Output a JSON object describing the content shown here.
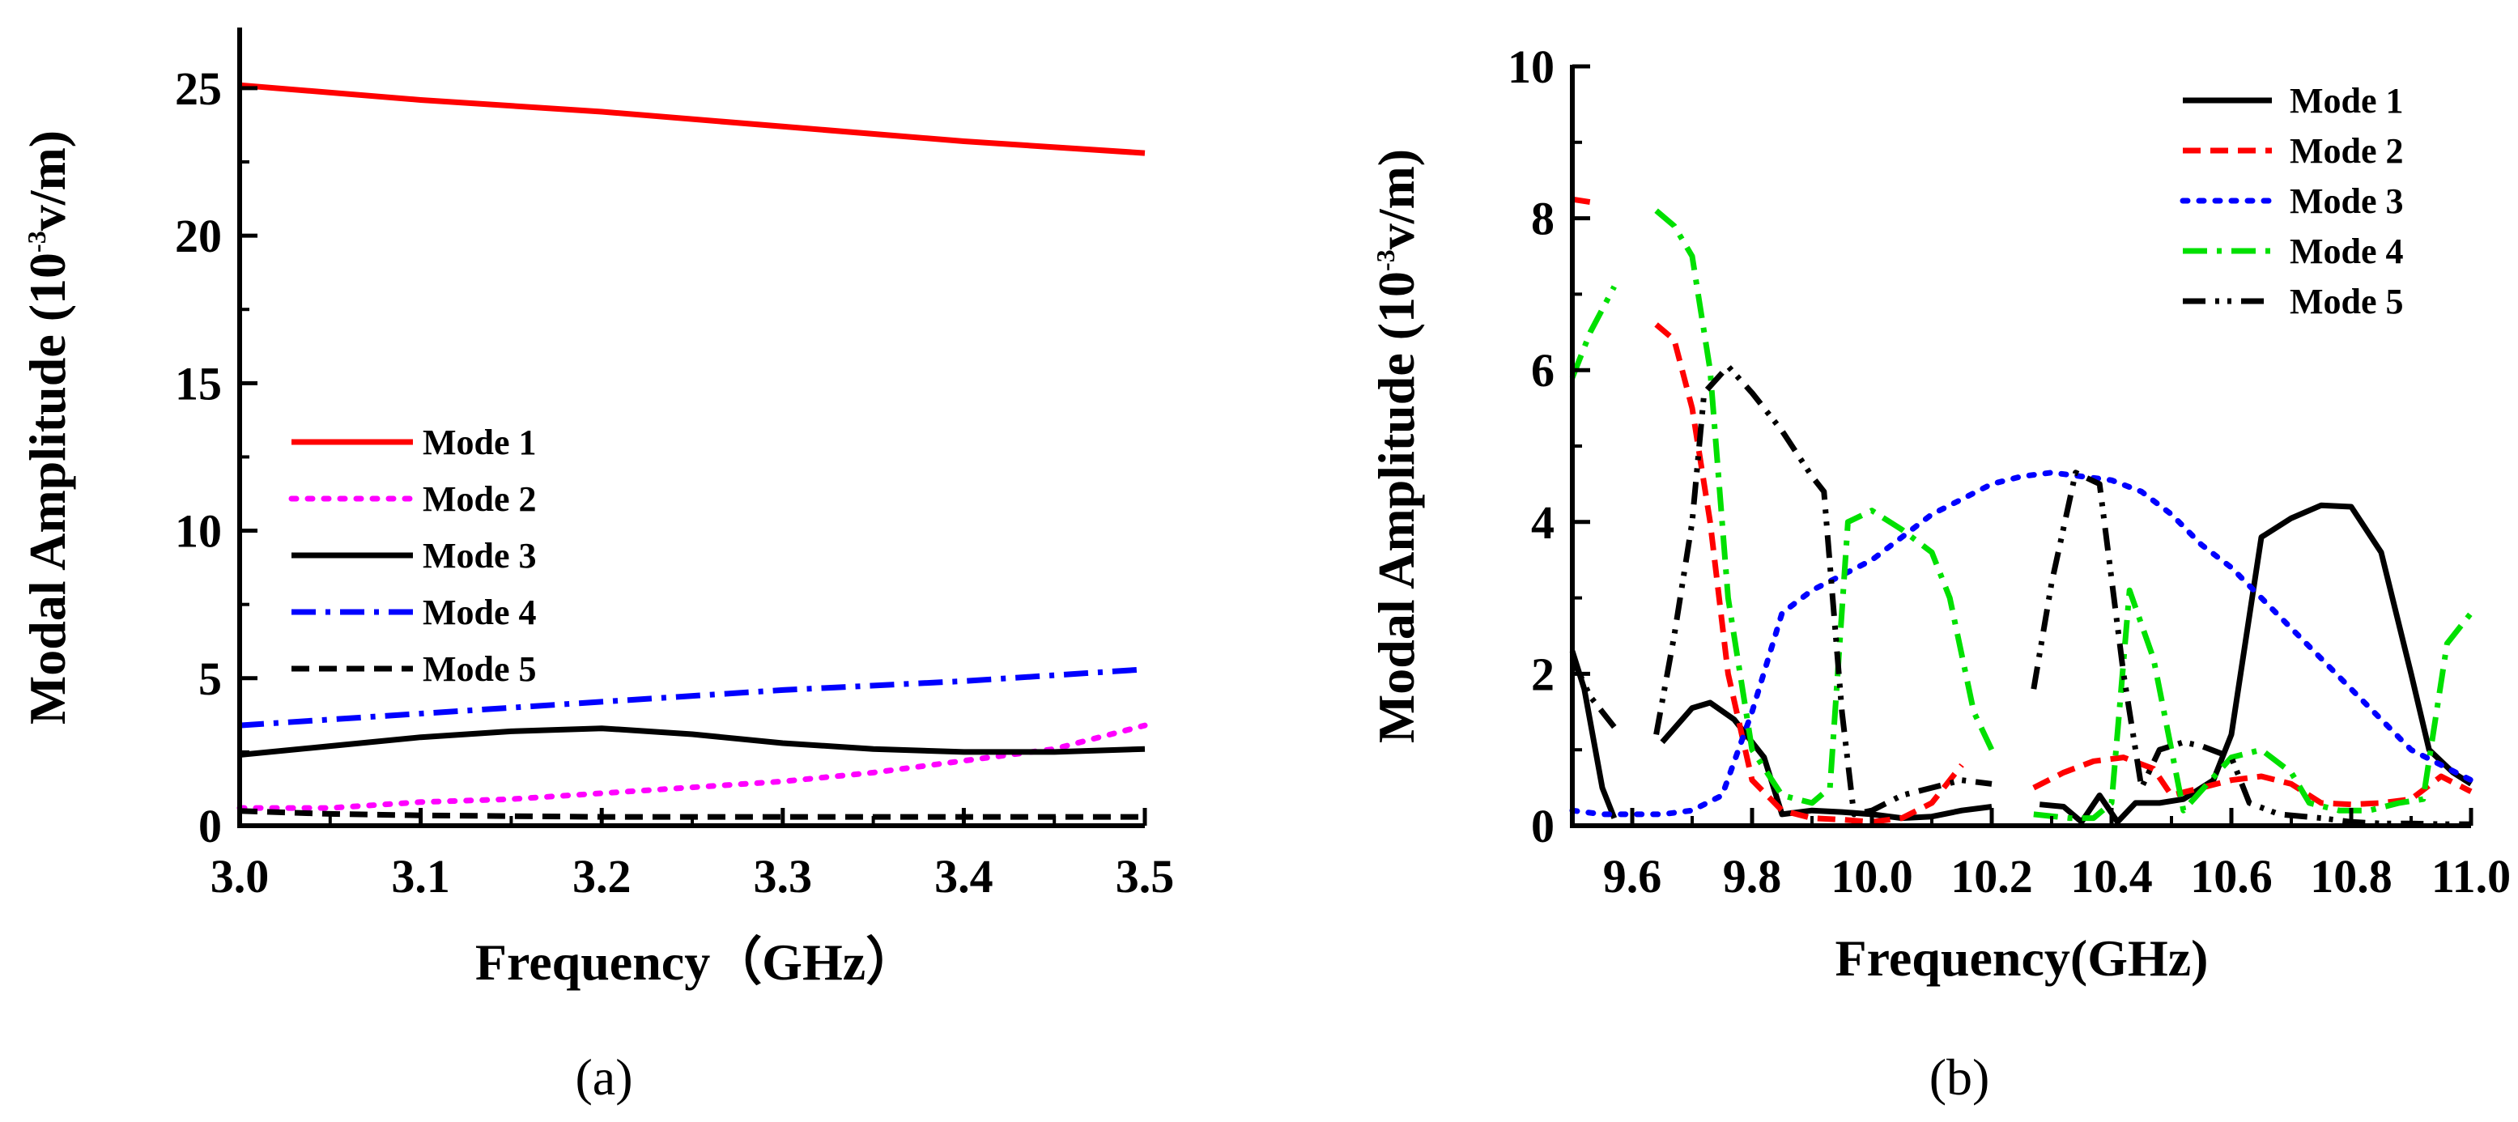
{
  "chart_data": [
    {
      "type": "line",
      "panel_label": "(a)",
      "xlabel": "Frequency（GHz）",
      "ylabel": "Modal Amplitude (10",
      "ylabel_exp": "-3",
      "ylabel_unit": "v/m)",
      "xlim": [
        3.0,
        3.5
      ],
      "ylim": [
        0,
        27
      ],
      "xticks": [
        "3.0",
        "3.1",
        "3.2",
        "3.3",
        "3.4",
        "3.5"
      ],
      "xtick_values": [
        3.0,
        3.1,
        3.2,
        3.3,
        3.4,
        3.5
      ],
      "yticks": [
        "0",
        "5",
        "10",
        "15",
        "20",
        "25"
      ],
      "ytick_values": [
        0,
        5,
        10,
        15,
        20,
        25
      ],
      "grid": false,
      "legend_position": "center-left",
      "series": [
        {
          "name": "Mode 1",
          "color": "#ff0000",
          "dash": "solid",
          "x": [
            3.0,
            3.1,
            3.2,
            3.3,
            3.4,
            3.5
          ],
          "y": [
            25.1,
            24.6,
            24.2,
            23.7,
            23.2,
            22.8
          ]
        },
        {
          "name": "Mode 2",
          "color": "#ff00ff",
          "dash": "dot",
          "x": [
            3.0,
            3.05,
            3.1,
            3.15,
            3.2,
            3.25,
            3.3,
            3.35,
            3.4,
            3.45,
            3.5
          ],
          "y": [
            0.6,
            0.6,
            0.8,
            0.9,
            1.1,
            1.3,
            1.5,
            1.8,
            2.2,
            2.6,
            3.4
          ]
        },
        {
          "name": "Mode 3",
          "color": "#000000",
          "dash": "solid",
          "x": [
            3.0,
            3.05,
            3.1,
            3.15,
            3.2,
            3.25,
            3.3,
            3.35,
            3.4,
            3.45,
            3.5
          ],
          "y": [
            2.4,
            2.7,
            3.0,
            3.2,
            3.3,
            3.1,
            2.8,
            2.6,
            2.5,
            2.5,
            2.6
          ]
        },
        {
          "name": "Mode 4",
          "color": "#0000ff",
          "dash": "dashdot",
          "x": [
            3.0,
            3.1,
            3.2,
            3.3,
            3.4,
            3.5
          ],
          "y": [
            3.4,
            3.8,
            4.2,
            4.6,
            4.9,
            5.3
          ]
        },
        {
          "name": "Mode 5",
          "color": "#000000",
          "dash": "dash",
          "x": [
            3.0,
            3.05,
            3.1,
            3.2,
            3.3,
            3.4,
            3.5
          ],
          "y": [
            0.5,
            0.4,
            0.35,
            0.3,
            0.3,
            0.3,
            0.3
          ]
        }
      ]
    },
    {
      "type": "line",
      "panel_label": "(b)",
      "xlabel": "Frequency(GHz)",
      "ylabel": "Modal Amplitude (10",
      "ylabel_exp": "-3",
      "ylabel_unit": "v/m)",
      "xlim": [
        9.5,
        11.0
      ],
      "ylim": [
        0,
        10
      ],
      "xticks": [
        "9.6",
        "9.8",
        "10.0",
        "10.2",
        "10.4",
        "10.6",
        "10.8",
        "11.0"
      ],
      "xtick_values": [
        9.6,
        9.8,
        10.0,
        10.2,
        10.4,
        10.6,
        10.8,
        11.0
      ],
      "yticks": [
        "0",
        "2",
        "4",
        "6",
        "8",
        "10"
      ],
      "ytick_values": [
        0,
        2,
        4,
        6,
        8,
        10
      ],
      "grid": false,
      "legend_position": "top-right",
      "series": [
        {
          "name": "Mode 1",
          "color": "#000000",
          "dash": "solid",
          "x": [
            9.5,
            9.52,
            9.55,
            9.57,
            null,
            9.65,
            9.7,
            9.73,
            9.77,
            9.82,
            9.85,
            9.9,
            9.95,
            10.0,
            10.05,
            10.1,
            10.15,
            10.2,
            null,
            10.28,
            10.32,
            10.35,
            10.38,
            10.41,
            10.44,
            10.48,
            10.52,
            10.57,
            10.6,
            10.65,
            10.7,
            10.75,
            10.8,
            10.85,
            10.9,
            10.93,
            10.97,
            11.0
          ],
          "y": [
            2.3,
            1.8,
            0.5,
            0.1,
            null,
            1.1,
            1.55,
            1.62,
            1.4,
            0.9,
            0.15,
            0.2,
            0.18,
            0.15,
            0.1,
            0.12,
            0.2,
            0.25,
            null,
            0.28,
            0.25,
            0.05,
            0.4,
            0.05,
            0.3,
            0.3,
            0.35,
            0.6,
            1.2,
            3.8,
            4.05,
            4.22,
            4.2,
            3.6,
            2.0,
            1.0,
            0.7,
            0.55
          ]
        },
        {
          "name": "Mode 2",
          "color": "#ff0000",
          "dash": "dash",
          "x": [
            9.5,
            9.54,
            null,
            9.64,
            9.67,
            9.7,
            9.73,
            9.76,
            9.8,
            9.85,
            9.9,
            9.95,
            10.0,
            10.05,
            10.1,
            10.15,
            null,
            10.27,
            10.32,
            10.37,
            10.42,
            10.47,
            10.5,
            10.55,
            10.6,
            10.65,
            10.7,
            10.75,
            10.8,
            10.85,
            10.9,
            10.95,
            11.0
          ],
          "y": [
            8.25,
            8.2,
            null,
            6.6,
            6.4,
            5.5,
            4.0,
            2.0,
            0.6,
            0.2,
            0.1,
            0.08,
            0.05,
            0.1,
            0.3,
            0.8,
            null,
            0.5,
            0.7,
            0.85,
            0.9,
            0.75,
            0.4,
            0.5,
            0.6,
            0.65,
            0.55,
            0.3,
            0.28,
            0.3,
            0.35,
            0.65,
            0.45
          ]
        },
        {
          "name": "Mode 3",
          "color": "#0000ff",
          "dash": "dot",
          "x": [
            9.5,
            9.55,
            9.6,
            9.65,
            9.7,
            9.75,
            9.8,
            9.85,
            9.9,
            9.95,
            10.0,
            10.05,
            10.1,
            10.15,
            10.2,
            10.25,
            10.3,
            10.35,
            10.4,
            10.45,
            10.5,
            10.55,
            10.6,
            10.65,
            10.7,
            10.75,
            10.8,
            10.85,
            10.9,
            10.95,
            11.0
          ],
          "y": [
            0.2,
            0.15,
            0.15,
            0.15,
            0.2,
            0.4,
            1.5,
            2.8,
            3.1,
            3.3,
            3.5,
            3.8,
            4.1,
            4.3,
            4.5,
            4.6,
            4.65,
            4.6,
            4.55,
            4.4,
            4.1,
            3.7,
            3.4,
            3.0,
            2.6,
            2.2,
            1.8,
            1.4,
            1.0,
            0.8,
            0.6
          ]
        },
        {
          "name": "Mode 4",
          "color": "#00e000",
          "dash": "dashdot",
          "x": [
            9.5,
            9.53,
            9.57,
            null,
            9.64,
            9.67,
            9.7,
            9.73,
            9.76,
            9.8,
            9.85,
            9.9,
            9.93,
            9.96,
            10.0,
            10.05,
            10.1,
            10.13,
            10.17,
            10.2,
            null,
            10.27,
            10.33,
            10.37,
            10.4,
            10.43,
            10.47,
            10.52,
            10.6,
            10.65,
            10.7,
            10.73,
            10.78,
            10.83,
            10.88,
            10.92,
            10.96,
            11.0
          ],
          "y": [
            5.9,
            6.5,
            7.1,
            null,
            8.1,
            7.9,
            7.5,
            6.0,
            3.0,
            1.0,
            0.4,
            0.3,
            0.5,
            4.0,
            4.15,
            3.9,
            3.6,
            3.0,
            1.5,
            1.0,
            null,
            0.15,
            0.1,
            0.1,
            0.3,
            3.1,
            2.2,
            0.2,
            0.9,
            1.0,
            0.7,
            0.3,
            0.2,
            0.2,
            0.3,
            0.35,
            2.4,
            2.8
          ]
        },
        {
          "name": "Mode 5",
          "color": "#000000",
          "dash": "dashdotdot",
          "x": [
            9.5,
            9.53,
            9.57,
            null,
            9.64,
            9.67,
            9.7,
            9.72,
            9.76,
            9.8,
            9.85,
            9.9,
            9.92,
            9.95,
            9.97,
            10.0,
            10.05,
            10.1,
            10.15,
            10.2,
            null,
            10.27,
            10.3,
            10.34,
            10.38,
            10.42,
            10.45,
            10.48,
            10.52,
            10.55,
            10.6,
            10.63,
            10.68,
            10.75,
            10.8,
            10.85,
            10.9,
            10.95,
            11.0
          ],
          "y": [
            2.2,
            1.7,
            1.3,
            null,
            1.2,
            2.5,
            4.0,
            5.7,
            6.05,
            5.7,
            5.2,
            4.6,
            4.4,
            1.5,
            0.15,
            0.2,
            0.4,
            0.5,
            0.6,
            0.55,
            null,
            1.8,
            3.2,
            4.65,
            4.5,
            2.0,
            0.5,
            1.0,
            1.1,
            1.05,
            0.9,
            0.3,
            0.15,
            0.1,
            0.05,
            0.03,
            0.03,
            0.02,
            0.02
          ]
        }
      ]
    }
  ]
}
